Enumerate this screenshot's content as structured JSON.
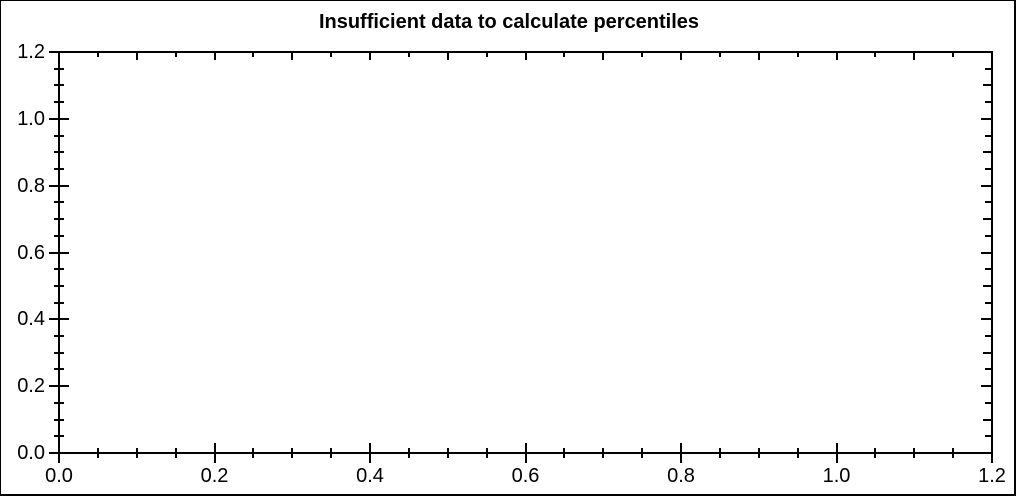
{
  "chart_data": {
    "type": "scatter",
    "title": "Insufficient data to calculate percentiles",
    "series": [],
    "xlabel": "",
    "ylabel": "",
    "xlim": [
      0.0,
      1.2
    ],
    "ylim": [
      0.0,
      1.2
    ],
    "x_major_step": 0.2,
    "x_minor_step": 0.05,
    "y_major_step": 0.2,
    "y_minor_step": 0.05,
    "x_tick_labels": [
      "0.0",
      "0.2",
      "0.4",
      "0.6",
      "0.8",
      "1.0",
      "1.2"
    ],
    "y_tick_labels": [
      "0.0",
      "0.2",
      "0.4",
      "0.6",
      "0.8",
      "1.0",
      "1.2"
    ],
    "grid": false,
    "legend_visible": false,
    "frame": true,
    "ticks_on_all_sides": true
  },
  "colors": {
    "background": "#ffffff",
    "axis": "#000000",
    "text": "#000000"
  }
}
